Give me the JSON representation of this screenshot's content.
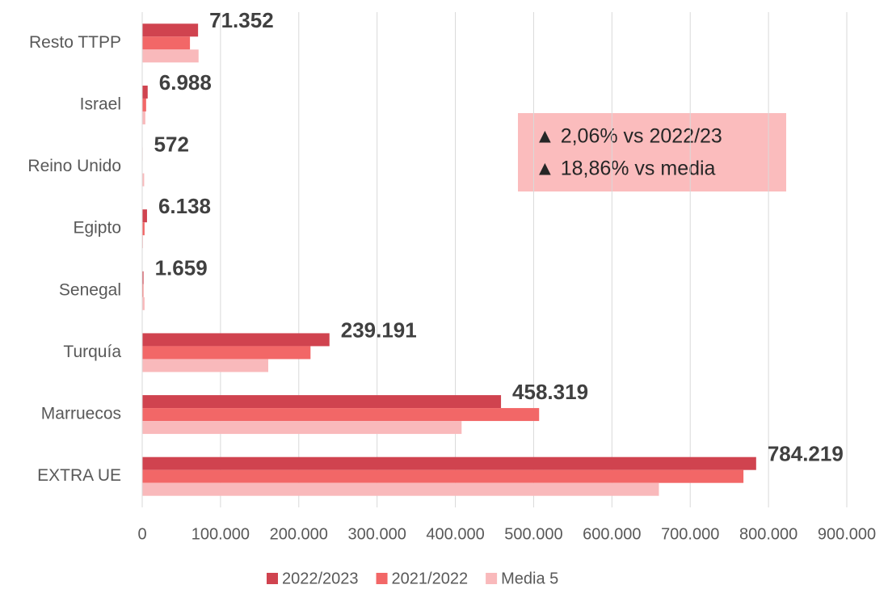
{
  "chart_data": {
    "type": "hbar",
    "categories": [
      "Resto TTPP",
      "Israel",
      "Reino Unido",
      "Egipto",
      "Senegal",
      "Turquía",
      "Marruecos",
      "EXTRA UE"
    ],
    "series": [
      {
        "name": "2022/2023",
        "color": "#d0434f",
        "values": [
          71352,
          6988,
          572,
          6138,
          1659,
          239191,
          458319,
          784219
        ],
        "value_labels": [
          "71.352",
          "6.988",
          "572",
          "6.138",
          "1.659",
          "239.191",
          "458.319",
          "784.219"
        ]
      },
      {
        "name": "2021/2022",
        "color": "#f26767",
        "values": [
          61000,
          5000,
          500,
          3000,
          1500,
          215000,
          507000,
          768000
        ]
      },
      {
        "name": "Media 5",
        "color": "#f9b9bb",
        "values": [
          72000,
          4000,
          2500,
          1000,
          3000,
          161000,
          408000,
          660000
        ]
      }
    ],
    "xlim": [
      0,
      900000
    ],
    "xticks": [
      0,
      {
        "value": 100000,
        "label": "100.000"
      },
      {
        "value": 200000,
        "label": "200.000"
      },
      {
        "value": 300000,
        "label": "300.000"
      },
      {
        "value": 400000,
        "label": "400.000"
      },
      {
        "value": 500000,
        "label": "500.000"
      },
      {
        "value": 600000,
        "label": "600.000"
      },
      {
        "value": 700000,
        "label": "700.000"
      },
      {
        "value": 800000,
        "label": "800.000"
      },
      {
        "value": 900000,
        "label": "900.000"
      }
    ],
    "grid": true,
    "annotations": [
      "▲ 2,06% vs 2022/23",
      "▲ 18,86% vs media"
    ]
  }
}
